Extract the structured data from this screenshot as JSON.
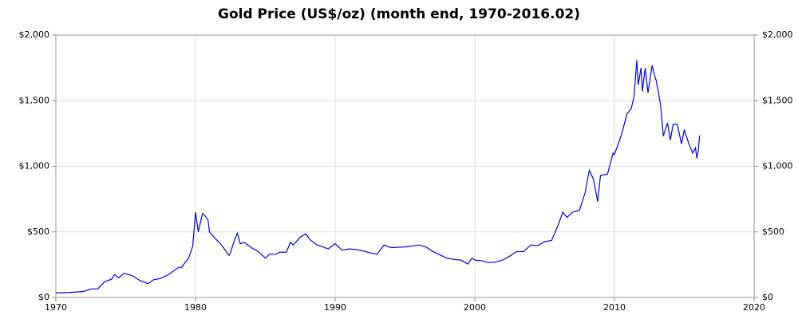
{
  "chart_data": {
    "type": "line",
    "title": "Gold Price (US$/oz) (month end, 1970-2016.02)",
    "series": [
      {
        "name": "Gold",
        "color": "#0000dd",
        "x": [
          1970.0,
          1971.0,
          1972.0,
          1972.5,
          1973.0,
          1973.5,
          1974.0,
          1974.2,
          1974.5,
          1974.9,
          1975.5,
          1976.0,
          1976.6,
          1977.0,
          1977.5,
          1978.0,
          1978.8,
          1979.0,
          1979.5,
          1979.8,
          1980.0,
          1980.2,
          1980.5,
          1980.7,
          1980.9,
          1981.0,
          1981.4,
          1981.7,
          1982.0,
          1982.4,
          1982.5,
          1982.8,
          1983.0,
          1983.2,
          1983.5,
          1984.0,
          1984.5,
          1985.0,
          1985.3,
          1985.8,
          1986.0,
          1986.5,
          1986.8,
          1987.0,
          1987.5,
          1987.9,
          1988.2,
          1988.7,
          1989.0,
          1989.5,
          1990.0,
          1990.5,
          1991.0,
          1991.5,
          1992.0,
          1992.5,
          1993.0,
          1993.5,
          1994.0,
          1995.0,
          1996.0,
          1996.5,
          1997.0,
          1997.5,
          1998.0,
          1998.5,
          1999.0,
          1999.5,
          1999.8,
          2000.0,
          2000.5,
          2001.0,
          2001.5,
          2002.0,
          2002.5,
          2003.0,
          2003.5,
          2004.0,
          2004.5,
          2005.0,
          2005.5,
          2006.0,
          2006.3,
          2006.6,
          2007.0,
          2007.5,
          2007.9,
          2008.2,
          2008.5,
          2008.8,
          2009.0,
          2009.5,
          2009.9,
          2010.0,
          2010.5,
          2010.9,
          2011.2,
          2011.4,
          2011.6,
          2011.7,
          2011.9,
          2012.0,
          2012.2,
          2012.4,
          2012.7,
          2012.9,
          2013.0,
          2013.3,
          2013.5,
          2013.8,
          2014.0,
          2014.2,
          2014.5,
          2014.8,
          2015.0,
          2015.3,
          2015.6,
          2015.8,
          2015.9,
          2016.0,
          2016.1
        ],
        "values": [
          35,
          38,
          46,
          65,
          65,
          120,
          140,
          175,
          150,
          185,
          165,
          130,
          105,
          135,
          145,
          170,
          230,
          230,
          300,
          390,
          650,
          500,
          640,
          620,
          590,
          500,
          450,
          420,
          380,
          320,
          340,
          440,
          490,
          410,
          420,
          380,
          350,
          300,
          330,
          330,
          345,
          345,
          420,
          400,
          460,
          485,
          440,
          400,
          390,
          370,
          410,
          360,
          370,
          365,
          355,
          340,
          330,
          400,
          380,
          385,
          400,
          385,
          350,
          325,
          300,
          290,
          285,
          255,
          300,
          285,
          280,
          265,
          270,
          285,
          315,
          350,
          350,
          400,
          395,
          425,
          435,
          560,
          650,
          610,
          650,
          665,
          800,
          970,
          900,
          730,
          930,
          940,
          1100,
          1090,
          1240,
          1400,
          1440,
          1530,
          1810,
          1620,
          1750,
          1570,
          1750,
          1560,
          1770,
          1680,
          1650,
          1470,
          1230,
          1330,
          1200,
          1320,
          1320,
          1170,
          1280,
          1180,
          1100,
          1140,
          1060,
          1120,
          1235
        ]
      }
    ],
    "xlim": [
      1970,
      2020
    ],
    "xticks": [
      1970,
      1980,
      1990,
      2000,
      2010,
      2020
    ],
    "ylim": [
      0,
      2000
    ],
    "yticks": [
      {
        "value": 0,
        "label": "$0"
      },
      {
        "value": 500,
        "label": "$500"
      },
      {
        "value": 1000,
        "label": "$1,000"
      },
      {
        "value": 1500,
        "label": "$1,500"
      },
      {
        "value": 2000,
        "label": "$2,000"
      }
    ],
    "y2lim": [
      0,
      2000
    ],
    "y2ticks": [
      {
        "value": 0,
        "label": "$0"
      },
      {
        "value": 500,
        "label": "$500"
      },
      {
        "value": 1000,
        "label": "$1,000"
      },
      {
        "value": 1500,
        "label": "$1,500"
      },
      {
        "value": 2000,
        "label": "$2,000"
      }
    ],
    "grid": true
  }
}
